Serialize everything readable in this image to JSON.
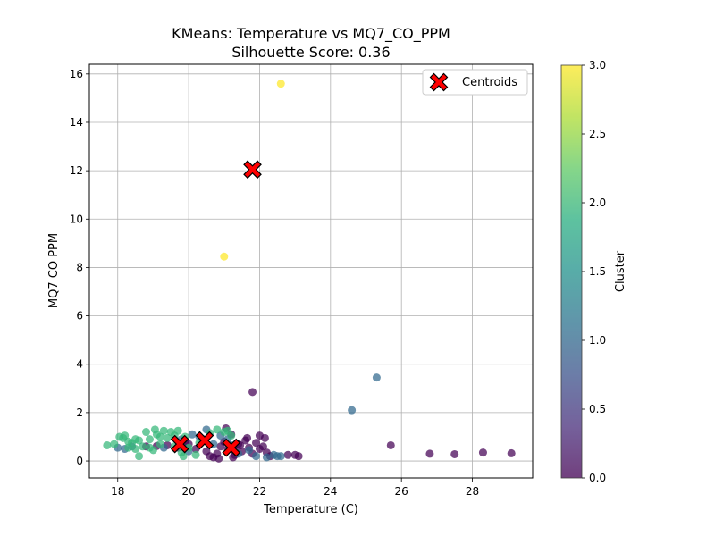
{
  "chart_data": {
    "type": "scatter",
    "title": "KMeans: Temperature vs MQ7_CO_PPM",
    "subtitle": "Silhouette Score: 0.36",
    "xlabel": "Temperature (C)",
    "ylabel": "MQ7 CO PPM",
    "xlim": [
      17.2,
      29.7
    ],
    "ylim": [
      -0.7,
      16.4
    ],
    "xticks": [
      18,
      20,
      22,
      24,
      26,
      28
    ],
    "yticks": [
      0,
      2,
      4,
      6,
      8,
      10,
      12,
      14,
      16
    ],
    "grid": true,
    "legend": {
      "position": "top-right",
      "entries": [
        "Centroids"
      ]
    },
    "colorbar": {
      "label": "Cluster",
      "range": [
        0.0,
        3.0
      ],
      "ticks": [
        "0.0",
        "0.5",
        "1.0",
        "1.5",
        "2.0",
        "2.5",
        "3.0"
      ],
      "colormap": "viridis"
    },
    "colors": {
      "cluster_0": "#440154",
      "cluster_1": "#31688e",
      "cluster_2": "#35b779",
      "cluster_3": "#fde725",
      "centroid": "#ff0000"
    },
    "series": [
      {
        "cluster": 0,
        "points": [
          [
            18.8,
            0.6
          ],
          [
            19.1,
            0.62
          ],
          [
            19.4,
            0.65
          ],
          [
            19.7,
            0.55
          ],
          [
            20.0,
            0.7
          ],
          [
            20.2,
            0.5
          ],
          [
            20.4,
            0.9
          ],
          [
            20.6,
            0.2
          ],
          [
            20.7,
            0.15
          ],
          [
            20.8,
            0.3
          ],
          [
            20.9,
            0.6
          ],
          [
            21.0,
            0.8
          ],
          [
            21.1,
            0.5
          ],
          [
            21.2,
            1.1
          ],
          [
            21.3,
            0.25
          ],
          [
            21.4,
            0.7
          ],
          [
            21.5,
            0.4
          ],
          [
            21.6,
            0.85
          ],
          [
            21.7,
            0.55
          ],
          [
            21.8,
            0.3
          ],
          [
            21.9,
            0.75
          ],
          [
            22.0,
            1.05
          ],
          [
            22.1,
            0.6
          ],
          [
            22.2,
            0.35
          ],
          [
            22.3,
            0.2
          ],
          [
            21.05,
            1.35
          ],
          [
            21.25,
            0.15
          ],
          [
            20.85,
            0.1
          ],
          [
            21.45,
            0.65
          ],
          [
            21.65,
            0.95
          ],
          [
            22.15,
            0.95
          ],
          [
            22.0,
            0.5
          ],
          [
            21.3,
            0.45
          ],
          [
            20.5,
            0.4
          ],
          [
            19.9,
            0.8
          ],
          [
            22.8,
            0.25
          ],
          [
            23.0,
            0.25
          ],
          [
            23.1,
            0.2
          ],
          [
            21.8,
            2.85
          ],
          [
            25.7,
            0.65
          ],
          [
            26.8,
            0.3
          ],
          [
            27.5,
            0.28
          ],
          [
            28.3,
            0.35
          ],
          [
            29.1,
            0.32
          ]
        ]
      },
      {
        "cluster": 1,
        "points": [
          [
            18.0,
            0.55
          ],
          [
            18.2,
            0.5
          ],
          [
            18.4,
            0.6
          ],
          [
            19.3,
            0.55
          ],
          [
            19.8,
            0.9
          ],
          [
            20.1,
            1.1
          ],
          [
            20.3,
            1.0
          ],
          [
            20.5,
            1.3
          ],
          [
            20.9,
            1.05
          ],
          [
            21.1,
            0.9
          ],
          [
            21.4,
            0.3
          ],
          [
            21.7,
            0.45
          ],
          [
            21.9,
            0.2
          ],
          [
            22.2,
            0.15
          ],
          [
            22.4,
            0.25
          ],
          [
            22.5,
            0.2
          ],
          [
            22.6,
            0.2
          ],
          [
            20.0,
            0.4
          ],
          [
            20.7,
            0.7
          ],
          [
            21.2,
            0.65
          ],
          [
            24.6,
            2.1
          ],
          [
            25.3,
            3.45
          ]
        ]
      },
      {
        "cluster": 2,
        "points": [
          [
            17.7,
            0.65
          ],
          [
            17.9,
            0.7
          ],
          [
            18.05,
            1.0
          ],
          [
            18.15,
            0.95
          ],
          [
            18.2,
            1.05
          ],
          [
            18.3,
            0.8
          ],
          [
            18.4,
            0.75
          ],
          [
            18.5,
            0.9
          ],
          [
            18.6,
            0.85
          ],
          [
            18.6,
            0.2
          ],
          [
            18.7,
            0.6
          ],
          [
            18.8,
            1.2
          ],
          [
            18.9,
            0.9
          ],
          [
            19.0,
            0.45
          ],
          [
            19.05,
            1.3
          ],
          [
            19.1,
            1.1
          ],
          [
            19.2,
            0.7
          ],
          [
            19.3,
            1.25
          ],
          [
            19.4,
            0.95
          ],
          [
            19.5,
            1.2
          ],
          [
            19.6,
            1.05
          ],
          [
            19.7,
            1.25
          ],
          [
            19.8,
            0.35
          ],
          [
            19.85,
            0.2
          ],
          [
            19.9,
            1.0
          ],
          [
            20.0,
            0.55
          ],
          [
            20.3,
            0.75
          ],
          [
            20.6,
            1.15
          ],
          [
            20.8,
            1.3
          ],
          [
            21.0,
            1.2
          ],
          [
            21.1,
            1.25
          ],
          [
            21.2,
            1.05
          ],
          [
            18.3,
            0.55
          ],
          [
            18.9,
            0.55
          ],
          [
            19.6,
            0.6
          ],
          [
            20.2,
            0.25
          ],
          [
            19.2,
            1.0
          ],
          [
            18.5,
            0.5
          ]
        ]
      },
      {
        "cluster": 3,
        "points": [
          [
            22.6,
            15.6
          ],
          [
            21.0,
            8.45
          ]
        ]
      }
    ],
    "centroids": [
      [
        19.75,
        0.7
      ],
      [
        20.45,
        0.85
      ],
      [
        21.2,
        0.55
      ],
      [
        21.8,
        12.05
      ]
    ]
  }
}
